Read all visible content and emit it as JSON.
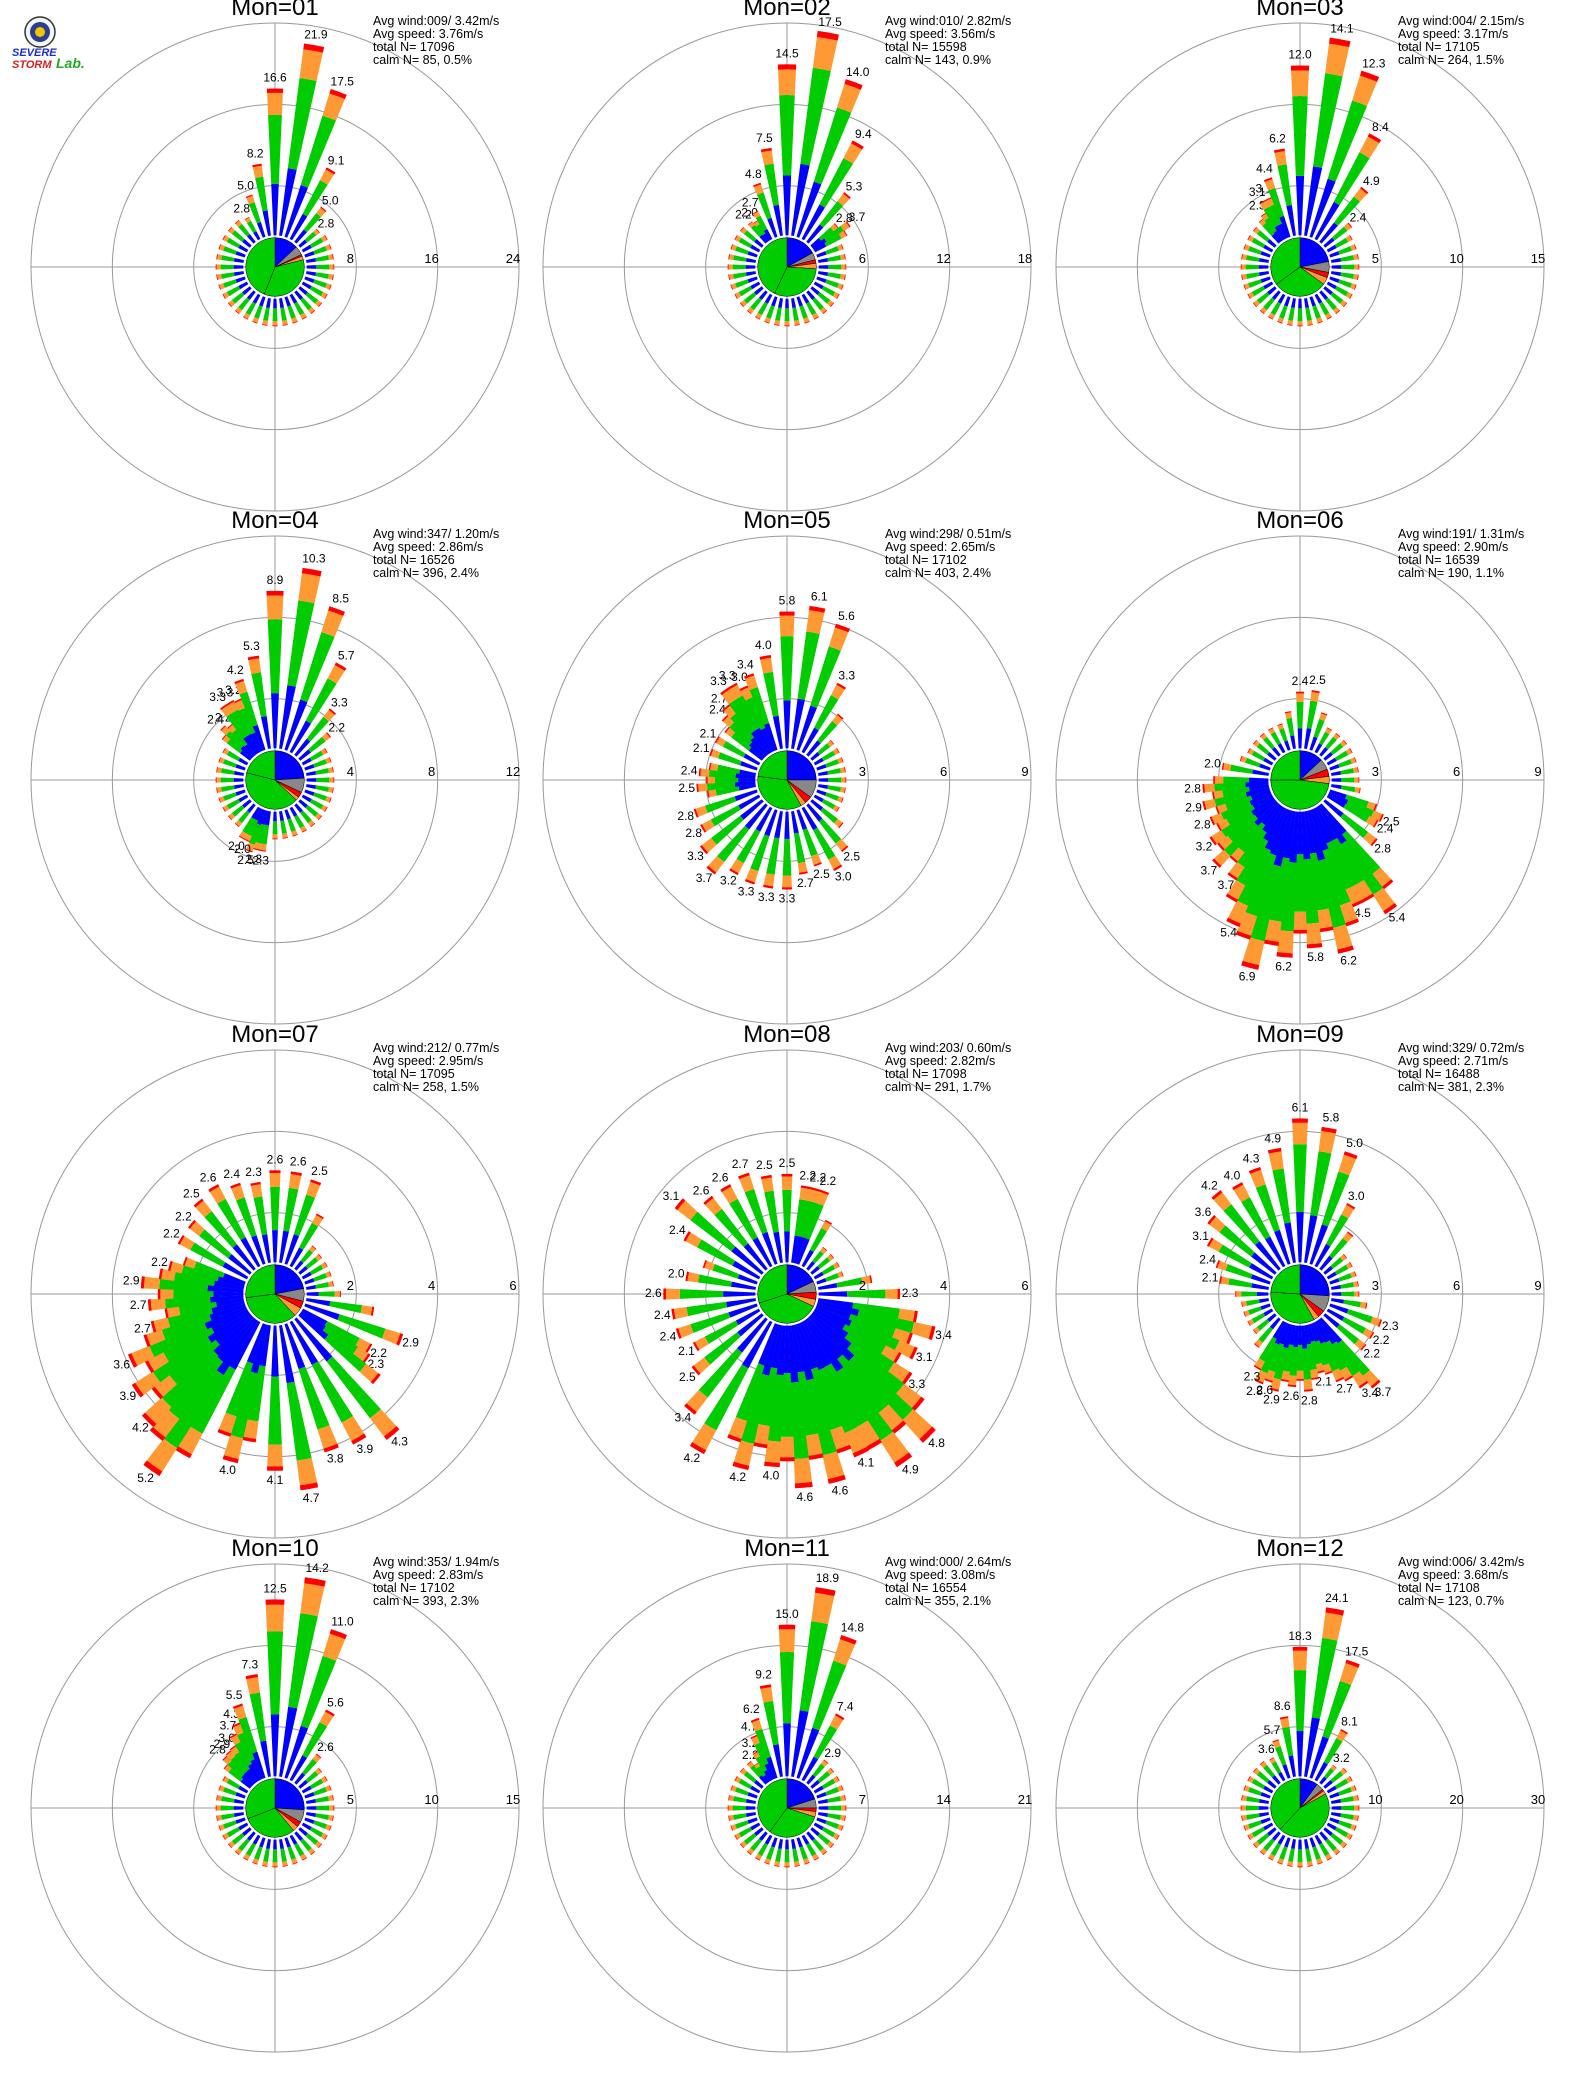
{
  "logo": {
    "top_text": "SEVERE",
    "bottom_text": "STORM",
    "lab_text": "Lab."
  },
  "colors": {
    "blue": "#0000ff",
    "green": "#00cc00",
    "orange": "#ff9933",
    "red": "#ff0000",
    "gray": "#888888"
  },
  "chart_data": [
    {
      "type": "polar-bar",
      "title": "Mon=01",
      "avg_wind": "Avg wind:009/ 3.42m/s",
      "avg_speed": "Avg speed: 3.76m/s",
      "total_n": "total N=      17096",
      "calm_n": "calm N=    85,   0.5%",
      "rticks": [
        "8",
        "16",
        "24"
      ],
      "rmax": 24,
      "labels": [
        {
          "dir": 0,
          "v": 16.6
        },
        {
          "dir": 10,
          "v": 21.9
        },
        {
          "dir": 20,
          "v": 17.5
        },
        {
          "dir": 30,
          "v": 9.1
        },
        {
          "dir": 40,
          "v": 5.0
        },
        {
          "dir": 50,
          "v": 2.8
        },
        {
          "dir": 350,
          "v": 8.2
        },
        {
          "dir": 340,
          "v": 5.0
        },
        {
          "dir": 330,
          "v": 2.8
        }
      ],
      "pie": [
        0.13,
        0.05,
        0.01,
        0.02,
        0.35,
        0.44
      ]
    },
    {
      "type": "polar-bar",
      "title": "Mon=02",
      "avg_wind": "Avg wind:010/ 2.82m/s",
      "avg_speed": "Avg speed: 3.56m/s",
      "total_n": "total N=      15598",
      "calm_n": "calm N=   143,   0.9%",
      "rticks": [
        "6",
        "12",
        "18"
      ],
      "rmax": 18,
      "labels": [
        {
          "dir": 0,
          "v": 14.5
        },
        {
          "dir": 10,
          "v": 17.5
        },
        {
          "dir": 20,
          "v": 14.0
        },
        {
          "dir": 30,
          "v": 9.4
        },
        {
          "dir": 40,
          "v": 5.3
        },
        {
          "dir": 50,
          "v": 2.8
        },
        {
          "dir": 55,
          "v": 3.7
        },
        {
          "dir": 350,
          "v": 7.5
        },
        {
          "dir": 340,
          "v": 4.8
        },
        {
          "dir": 330,
          "v": 2.7
        },
        {
          "dir": 325,
          "v": 2.0
        },
        {
          "dir": 320,
          "v": 2.2
        }
      ],
      "pie": [
        0.17,
        0.04,
        0.02,
        0.03,
        0.31,
        0.43
      ]
    },
    {
      "type": "polar-bar",
      "title": "Mon=03",
      "avg_wind": "Avg wind:004/ 2.15m/s",
      "avg_speed": "Avg speed: 3.17m/s",
      "total_n": "total N=      17105",
      "calm_n": "calm N=   264,   1.5%",
      "rticks": [
        "5",
        "10",
        "15"
      ],
      "rmax": 15,
      "labels": [
        {
          "dir": 0,
          "v": 12.0
        },
        {
          "dir": 10,
          "v": 14.1
        },
        {
          "dir": 20,
          "v": 12.3
        },
        {
          "dir": 30,
          "v": 8.4
        },
        {
          "dir": 40,
          "v": 4.9
        },
        {
          "dir": 50,
          "v": 2.4
        },
        {
          "dir": 350,
          "v": 6.2
        },
        {
          "dir": 340,
          "v": 4.4
        },
        {
          "dir": 335,
          "v": 3.1
        },
        {
          "dir": 330,
          "v": 3.1
        },
        {
          "dir": 325,
          "v": 2.3
        }
      ],
      "pie": [
        0.22,
        0.06,
        0.03,
        0.04,
        0.3,
        0.35
      ]
    },
    {
      "type": "polar-bar",
      "title": "Mon=04",
      "avg_wind": "Avg wind:347/ 1.20m/s",
      "avg_speed": "Avg speed: 2.86m/s",
      "total_n": "total N=      16526",
      "calm_n": "calm N=   396,   2.4%",
      "rticks": [
        "4",
        "8",
        "12"
      ],
      "rmax": 12,
      "labels": [
        {
          "dir": 0,
          "v": 8.9
        },
        {
          "dir": 10,
          "v": 10.3
        },
        {
          "dir": 20,
          "v": 8.5
        },
        {
          "dir": 30,
          "v": 5.7
        },
        {
          "dir": 40,
          "v": 3.3
        },
        {
          "dir": 50,
          "v": 2.2
        },
        {
          "dir": 350,
          "v": 5.3
        },
        {
          "dir": 340,
          "v": 4.2
        },
        {
          "dir": 335,
          "v": 3.2
        },
        {
          "dir": 330,
          "v": 3.3
        },
        {
          "dir": 325,
          "v": 3.3
        },
        {
          "dir": 320,
          "v": 2.2
        },
        {
          "dir": 315,
          "v": 2.4
        },
        {
          "dir": 190,
          "v": 2.3
        },
        {
          "dir": 195,
          "v": 2.3
        },
        {
          "dir": 200,
          "v": 2.5
        },
        {
          "dir": 205,
          "v": 2.0
        },
        {
          "dir": 210,
          "v": 2.0
        }
      ],
      "pie": [
        0.24,
        0.08,
        0.03,
        0.02,
        0.42,
        0.21
      ]
    },
    {
      "type": "polar-bar",
      "title": "Mon=05",
      "avg_wind": "Avg wind:298/ 0.51m/s",
      "avg_speed": "Avg speed: 2.65m/s",
      "total_n": "total N=      17102",
      "calm_n": "calm N=   403,   2.4%",
      "rticks": [
        "3",
        "6",
        "9"
      ],
      "rmax": 9,
      "labels": [
        {
          "dir": 0,
          "v": 5.8
        },
        {
          "dir": 10,
          "v": 6.1
        },
        {
          "dir": 20,
          "v": 5.6
        },
        {
          "dir": 30,
          "v": 3.3
        },
        {
          "dir": 350,
          "v": 4.0
        },
        {
          "dir": 340,
          "v": 3.4
        },
        {
          "dir": 335,
          "v": 3.0
        },
        {
          "dir": 330,
          "v": 3.3
        },
        {
          "dir": 325,
          "v": 3.3
        },
        {
          "dir": 320,
          "v": 2.7
        },
        {
          "dir": 315,
          "v": 2.4
        },
        {
          "dir": 300,
          "v": 2.1
        },
        {
          "dir": 290,
          "v": 2.1
        },
        {
          "dir": 275,
          "v": 2.4
        },
        {
          "dir": 265,
          "v": 2.5
        },
        {
          "dir": 250,
          "v": 2.8
        },
        {
          "dir": 240,
          "v": 2.8
        },
        {
          "dir": 230,
          "v": 3.3
        },
        {
          "dir": 220,
          "v": 3.7
        },
        {
          "dir": 210,
          "v": 3.2
        },
        {
          "dir": 200,
          "v": 3.3
        },
        {
          "dir": 190,
          "v": 3.3
        },
        {
          "dir": 180,
          "v": 3.3
        },
        {
          "dir": 170,
          "v": 2.7
        },
        {
          "dir": 160,
          "v": 2.5
        },
        {
          "dir": 150,
          "v": 3.0
        },
        {
          "dir": 140,
          "v": 2.5
        }
      ],
      "pie": [
        0.25,
        0.1,
        0.04,
        0.03,
        0.35,
        0.23
      ]
    },
    {
      "type": "polar-bar",
      "title": "Mon=06",
      "avg_wind": "Avg wind:191/ 1.31m/s",
      "avg_speed": "Avg speed: 2.90m/s",
      "total_n": "total N=      16539",
      "calm_n": "calm N=   190,   1.1%",
      "rticks": [
        "3",
        "6",
        "9"
      ],
      "rmax": 9,
      "labels": [
        {
          "dir": 0,
          "v": 2.4
        },
        {
          "dir": 10,
          "v": 2.5
        },
        {
          "dir": 280,
          "v": 2.0
        },
        {
          "dir": 265,
          "v": 2.8
        },
        {
          "dir": 255,
          "v": 2.9
        },
        {
          "dir": 245,
          "v": 2.8
        },
        {
          "dir": 235,
          "v": 3.2
        },
        {
          "dir": 225,
          "v": 3.7
        },
        {
          "dir": 215,
          "v": 3.7
        },
        {
          "dir": 205,
          "v": 5.4
        },
        {
          "dir": 195,
          "v": 6.9
        },
        {
          "dir": 185,
          "v": 6.2
        },
        {
          "dir": 175,
          "v": 5.8
        },
        {
          "dir": 165,
          "v": 6.2
        },
        {
          "dir": 155,
          "v": 4.5
        },
        {
          "dir": 145,
          "v": 5.4
        },
        {
          "dir": 115,
          "v": 2.5
        },
        {
          "dir": 120,
          "v": 2.4
        },
        {
          "dir": 130,
          "v": 2.8
        }
      ],
      "pie": [
        0.13,
        0.06,
        0.04,
        0.04,
        0.48,
        0.25
      ]
    },
    {
      "type": "polar-bar",
      "title": "Mon=07",
      "avg_wind": "Avg wind:212/ 0.77m/s",
      "avg_speed": "Avg speed: 2.95m/s",
      "total_n": "total N=      17095",
      "calm_n": "calm N=   258,   1.5%",
      "rticks": [
        "2",
        "4",
        "6"
      ],
      "rmax": 6,
      "labels": [
        {
          "dir": 0,
          "v": 2.6
        },
        {
          "dir": 10,
          "v": 2.6
        },
        {
          "dir": 20,
          "v": 2.5
        },
        {
          "dir": 350,
          "v": 2.3
        },
        {
          "dir": 340,
          "v": 2.4
        },
        {
          "dir": 330,
          "v": 2.6
        },
        {
          "dir": 320,
          "v": 2.5
        },
        {
          "dir": 310,
          "v": 2.2
        },
        {
          "dir": 300,
          "v": 2.2
        },
        {
          "dir": 285,
          "v": 2.2
        },
        {
          "dir": 275,
          "v": 2.9
        },
        {
          "dir": 265,
          "v": 2.7
        },
        {
          "dir": 255,
          "v": 2.7
        },
        {
          "dir": 245,
          "v": 3.6
        },
        {
          "dir": 235,
          "v": 3.9
        },
        {
          "dir": 225,
          "v": 4.2
        },
        {
          "dir": 215,
          "v": 5.2
        },
        {
          "dir": 195,
          "v": 4.0
        },
        {
          "dir": 180,
          "v": 4.1
        },
        {
          "dir": 170,
          "v": 4.7
        },
        {
          "dir": 160,
          "v": 3.8
        },
        {
          "dir": 150,
          "v": 3.9
        },
        {
          "dir": 140,
          "v": 4.3
        },
        {
          "dir": 110,
          "v": 2.9
        },
        {
          "dir": 120,
          "v": 2.2
        },
        {
          "dir": 125,
          "v": 2.3
        }
      ],
      "pie": [
        0.22,
        0.07,
        0.04,
        0.05,
        0.35,
        0.27
      ]
    },
    {
      "type": "polar-bar",
      "title": "Mon=08",
      "avg_wind": "Avg wind:203/ 0.60m/s",
      "avg_speed": "Avg speed: 2.82m/s",
      "total_n": "total N=      17098",
      "calm_n": "calm N=   291,   1.7%",
      "rticks": [
        "2",
        "4",
        "6"
      ],
      "rmax": 6,
      "labels": [
        {
          "dir": 0,
          "v": 2.5
        },
        {
          "dir": 10,
          "v": 2.2
        },
        {
          "dir": 15,
          "v": 2.2
        },
        {
          "dir": 20,
          "v": 2.2
        },
        {
          "dir": 350,
          "v": 2.5
        },
        {
          "dir": 340,
          "v": 2.7
        },
        {
          "dir": 330,
          "v": 2.6
        },
        {
          "dir": 320,
          "v": 2.6
        },
        {
          "dir": 310,
          "v": 3.1
        },
        {
          "dir": 300,
          "v": 2.4
        },
        {
          "dir": 280,
          "v": 2.0
        },
        {
          "dir": 270,
          "v": 2.6
        },
        {
          "dir": 260,
          "v": 2.4
        },
        {
          "dir": 250,
          "v": 2.4
        },
        {
          "dir": 240,
          "v": 2.1
        },
        {
          "dir": 230,
          "v": 2.5
        },
        {
          "dir": 220,
          "v": 3.4
        },
        {
          "dir": 210,
          "v": 4.2
        },
        {
          "dir": 195,
          "v": 4.2
        },
        {
          "dir": 185,
          "v": 4.0
        },
        {
          "dir": 175,
          "v": 4.6
        },
        {
          "dir": 165,
          "v": 4.6
        },
        {
          "dir": 155,
          "v": 4.1
        },
        {
          "dir": 145,
          "v": 4.9
        },
        {
          "dir": 135,
          "v": 4.8
        },
        {
          "dir": 125,
          "v": 3.3
        },
        {
          "dir": 115,
          "v": 3.1
        },
        {
          "dir": 105,
          "v": 3.4
        },
        {
          "dir": 90,
          "v": 2.3
        }
      ],
      "pie": [
        0.18,
        0.06,
        0.04,
        0.04,
        0.38,
        0.3
      ]
    },
    {
      "type": "polar-bar",
      "title": "Mon=09",
      "avg_wind": "Avg wind:329/ 0.72m/s",
      "avg_speed": "Avg speed: 2.71m/s",
      "total_n": "total N=      16488",
      "calm_n": "calm N=   381,   2.3%",
      "rticks": [
        "3",
        "6",
        "9"
      ],
      "rmax": 9,
      "labels": [
        {
          "dir": 0,
          "v": 6.1
        },
        {
          "dir": 10,
          "v": 5.8
        },
        {
          "dir": 20,
          "v": 5.0
        },
        {
          "dir": 30,
          "v": 3.0
        },
        {
          "dir": 350,
          "v": 4.9
        },
        {
          "dir": 340,
          "v": 4.3
        },
        {
          "dir": 330,
          "v": 4.0
        },
        {
          "dir": 320,
          "v": 4.2
        },
        {
          "dir": 310,
          "v": 3.6
        },
        {
          "dir": 300,
          "v": 3.1
        },
        {
          "dir": 290,
          "v": 2.4
        },
        {
          "dir": 280,
          "v": 2.1
        },
        {
          "dir": 195,
          "v": 2.9
        },
        {
          "dir": 200,
          "v": 2.6
        },
        {
          "dir": 205,
          "v": 2.8
        },
        {
          "dir": 210,
          "v": 2.3
        },
        {
          "dir": 185,
          "v": 2.6
        },
        {
          "dir": 175,
          "v": 2.8
        },
        {
          "dir": 165,
          "v": 2.1
        },
        {
          "dir": 155,
          "v": 2.7
        },
        {
          "dir": 145,
          "v": 3.4
        },
        {
          "dir": 140,
          "v": 3.7
        },
        {
          "dir": 130,
          "v": 2.2
        },
        {
          "dir": 120,
          "v": 2.2
        },
        {
          "dir": 110,
          "v": 2.3
        }
      ],
      "pie": [
        0.26,
        0.09,
        0.04,
        0.03,
        0.34,
        0.24
      ]
    },
    {
      "type": "polar-bar",
      "title": "Mon=10",
      "avg_wind": "Avg wind:353/ 1.94m/s",
      "avg_speed": "Avg speed: 2.83m/s",
      "total_n": "total N=      17102",
      "calm_n": "calm N=   393,   2.3%",
      "rticks": [
        "5",
        "10",
        "15"
      ],
      "rmax": 15,
      "labels": [
        {
          "dir": 0,
          "v": 12.5
        },
        {
          "dir": 10,
          "v": 14.2
        },
        {
          "dir": 20,
          "v": 11.0
        },
        {
          "dir": 30,
          "v": 5.6
        },
        {
          "dir": 40,
          "v": 2.6
        },
        {
          "dir": 350,
          "v": 7.3
        },
        {
          "dir": 340,
          "v": 5.5
        },
        {
          "dir": 335,
          "v": 4.3
        },
        {
          "dir": 330,
          "v": 3.7
        },
        {
          "dir": 325,
          "v": 3.0
        },
        {
          "dir": 320,
          "v": 2.9
        },
        {
          "dir": 315,
          "v": 2.8
        }
      ],
      "pie": [
        0.26,
        0.07,
        0.03,
        0.03,
        0.3,
        0.31
      ]
    },
    {
      "type": "polar-bar",
      "title": "Mon=11",
      "avg_wind": "Avg wind:000/ 2.64m/s",
      "avg_speed": "Avg speed: 3.08m/s",
      "total_n": "total N=      16554",
      "calm_n": "calm N=   355,   2.1%",
      "rticks": [
        "7",
        "14",
        "21"
      ],
      "rmax": 21,
      "labels": [
        {
          "dir": 0,
          "v": 15.0
        },
        {
          "dir": 10,
          "v": 18.9
        },
        {
          "dir": 20,
          "v": 14.8
        },
        {
          "dir": 30,
          "v": 7.4
        },
        {
          "dir": 40,
          "v": 2.9
        },
        {
          "dir": 350,
          "v": 9.2
        },
        {
          "dir": 340,
          "v": 6.2
        },
        {
          "dir": 335,
          "v": 4.7
        },
        {
          "dir": 330,
          "v": 3.2
        },
        {
          "dir": 325,
          "v": 2.2
        }
      ],
      "pie": [
        0.2,
        0.05,
        0.02,
        0.03,
        0.3,
        0.4
      ]
    },
    {
      "type": "polar-bar",
      "title": "Mon=12",
      "avg_wind": "Avg wind:006/ 3.42m/s",
      "avg_speed": "Avg speed: 3.68m/s",
      "total_n": "total N=      17108",
      "calm_n": "calm N=   123,   0.7%",
      "rticks": [
        "10",
        "20",
        "30"
      ],
      "rmax": 30,
      "labels": [
        {
          "dir": 0,
          "v": 18.3
        },
        {
          "dir": 10,
          "v": 24.1
        },
        {
          "dir": 20,
          "v": 17.5
        },
        {
          "dir": 30,
          "v": 8.1
        },
        {
          "dir": 40,
          "v": 3.2
        },
        {
          "dir": 350,
          "v": 8.6
        },
        {
          "dir": 340,
          "v": 5.7
        },
        {
          "dir": 330,
          "v": 3.6
        }
      ],
      "pie": [
        0.1,
        0.04,
        0.01,
        0.02,
        0.45,
        0.38
      ]
    }
  ]
}
